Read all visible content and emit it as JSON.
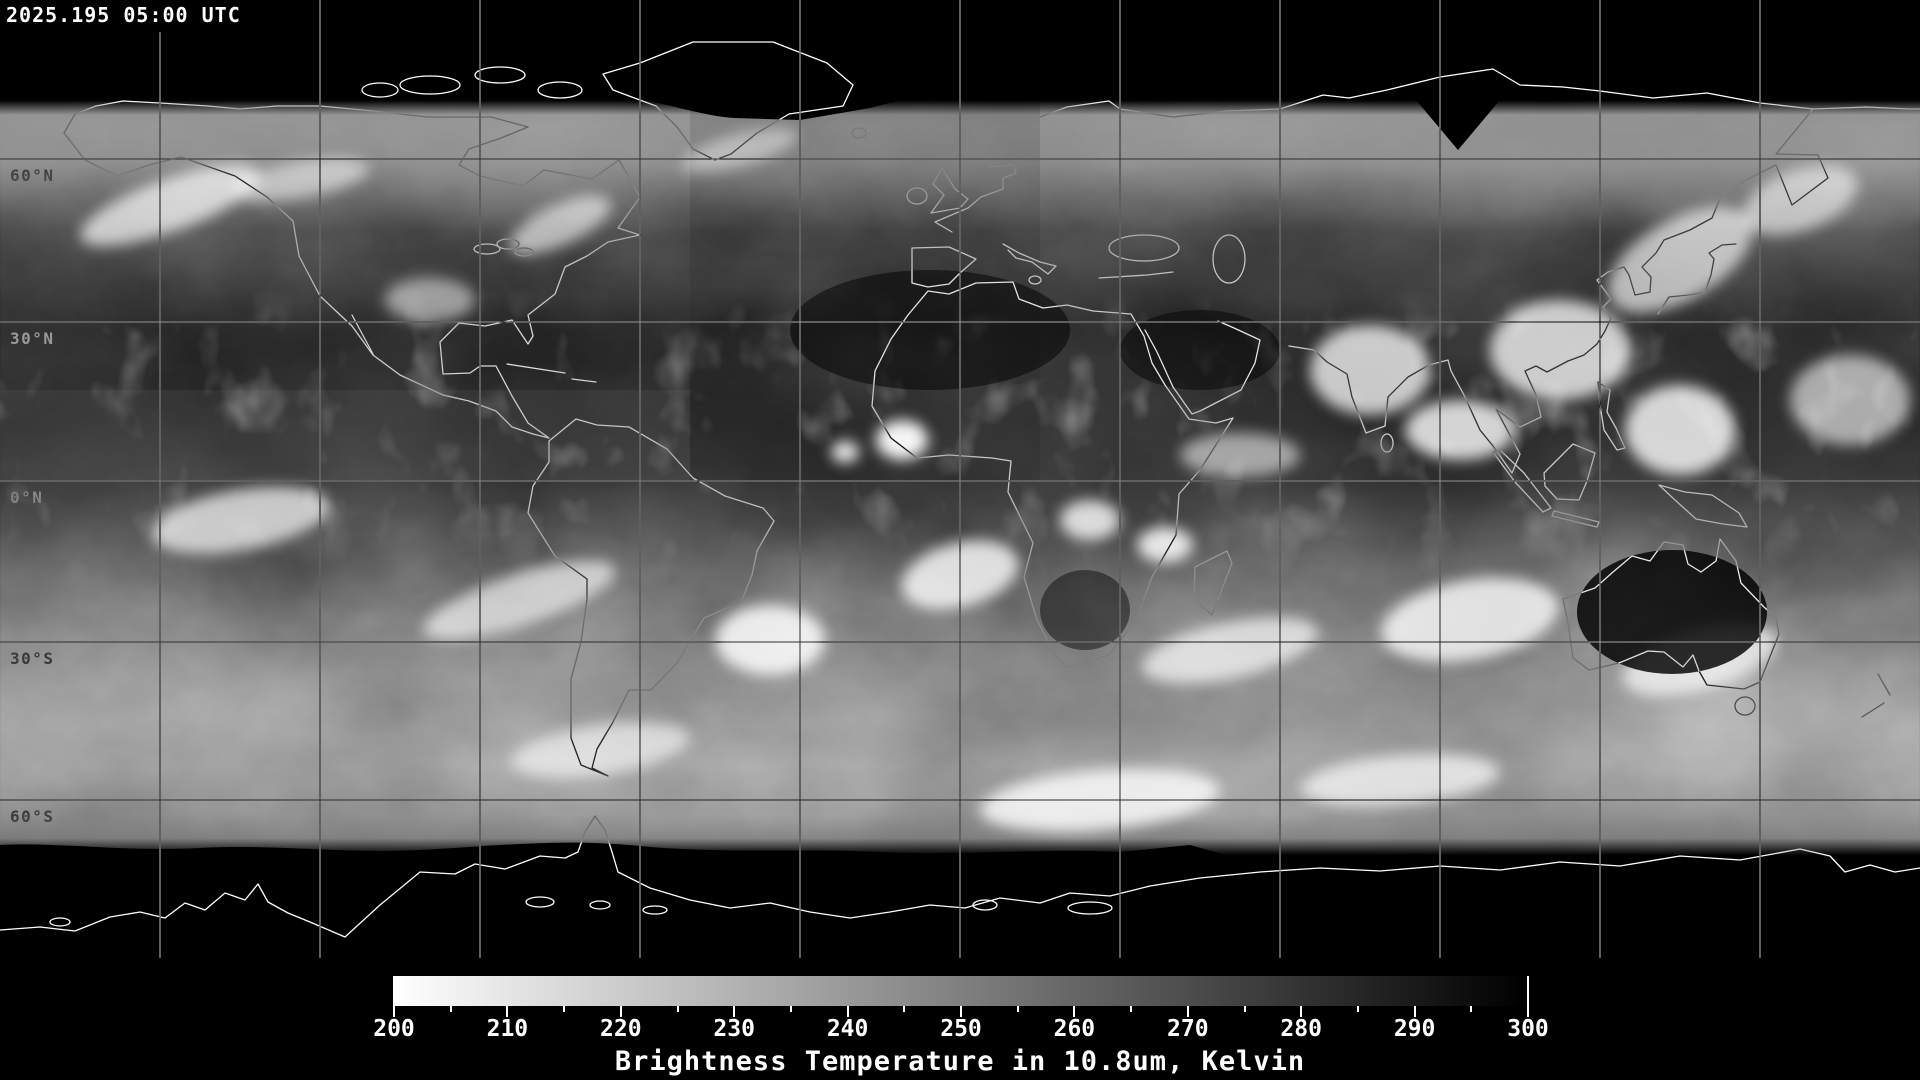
{
  "header": {
    "timestamp": "2025.195 05:00 UTC"
  },
  "map": {
    "latitude_labels": [
      "60°N",
      "30°N",
      "0°N",
      "30°S",
      "60°S"
    ],
    "grid_spacing_degrees": 30
  },
  "colorbar": {
    "title": "Brightness Temperature in 10.8um, Kelvin",
    "min": 200,
    "max": 300,
    "major_ticks": [
      200,
      210,
      220,
      230,
      240,
      250,
      260,
      270,
      280,
      290,
      300
    ],
    "minor_tick_step": 5,
    "gradient_start_color": "#ffffff",
    "gradient_end_color": "#000000"
  },
  "colors": {
    "background": "#000000",
    "coastline": "#ffffff",
    "graticule": "#c0c0c0",
    "text": "#ffffff"
  }
}
